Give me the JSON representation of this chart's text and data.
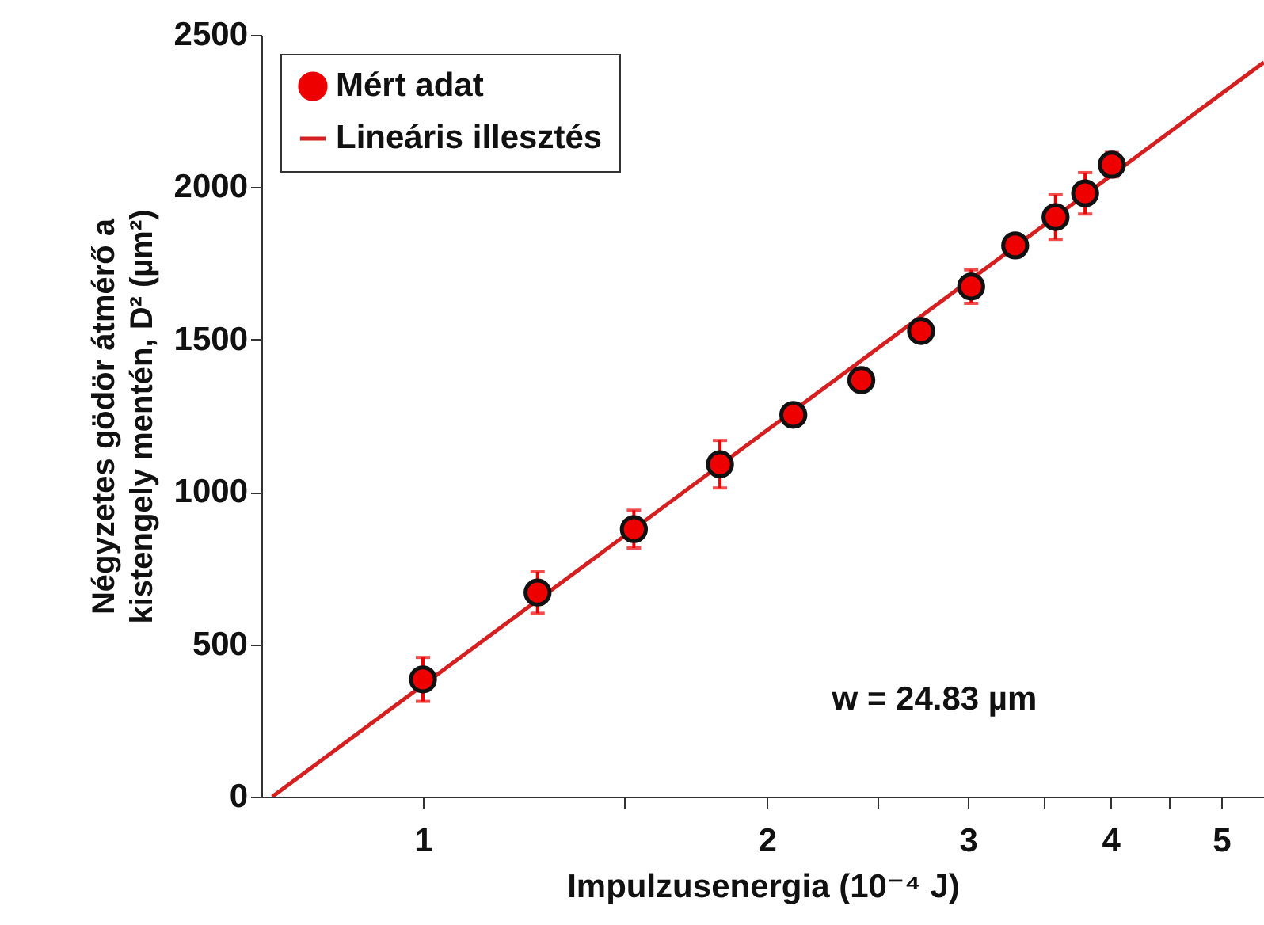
{
  "chart_data": {
    "type": "scatter",
    "xlabel": "Impulzusenergia (10⁻⁴ J)",
    "ylabel": "Négyzetes gödör átmérő a\nkistengely mentén, D² (µm²)",
    "annotations": [
      "w = 24.83 µm"
    ],
    "log": "x",
    "xlim": [
      0.722,
      5.45
    ],
    "ylim": [
      0,
      2500
    ],
    "xticks": [
      1,
      {
        "value": 1.5,
        "label": null
      },
      2,
      {
        "value": 2.5,
        "label": null
      },
      3,
      {
        "value": 3.5,
        "label": null
      },
      4,
      {
        "value": 4.5,
        "label": null
      },
      5
    ],
    "yticks": [
      0,
      500,
      1000,
      1500,
      2000,
      2500
    ],
    "grid": false,
    "legend": "top left",
    "marker": "circle",
    "series": [
      {
        "name": "Mért adat",
        "type": "scatter",
        "color": "#ee0000",
        "x": [
          1.0,
          1.26,
          1.53,
          1.82,
          2.11,
          2.42,
          2.73,
          3.02,
          3.3,
          3.58,
          3.8,
          4.01
        ],
        "values": [
          385,
          670,
          878,
          1091,
          1253,
          1367,
          1528,
          1674,
          1809,
          1902,
          1980,
          2074
        ],
        "errors": [
          72,
          68,
          62,
          78,
          null,
          null,
          null,
          55,
          35,
          73,
          68,
          40
        ]
      },
      {
        "name": "Lineáris illesztés",
        "type": "line",
        "color": "#d42020",
        "line_style": "solid",
        "marker": "none",
        "x": [
          0.738,
          5.45
        ],
        "values": [
          0,
          2410
        ]
      }
    ]
  }
}
